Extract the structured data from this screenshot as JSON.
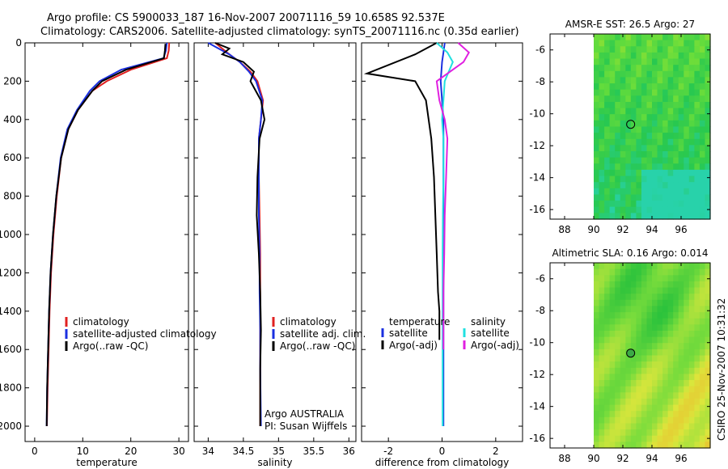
{
  "header": {
    "line1": "Argo profile: CS 5900033_187 16-Nov-2007 20071116_59 10.658S 92.537E",
    "line2": "Climatology: CARS2006. Satellite-adjusted climatology: synTS_20071116.nc (0.35d earlier)"
  },
  "side_stamp": "CSIRO 25-Nov-2007 10:31:32",
  "colors": {
    "climatology": "#e02020",
    "satellite": "#1a2fe0",
    "argo": "#000000",
    "sal_satellite": "#20e0e0",
    "sal_argo": "#e020e0"
  },
  "chart_data": [
    {
      "type": "line",
      "id": "temperature",
      "title": "",
      "xlabel": "temperature",
      "ylabel": "",
      "xlim": [
        -2,
        32
      ],
      "ylim": [
        2080,
        0
      ],
      "xticks": [
        0,
        10,
        20,
        30
      ],
      "xtick_labels": [
        "0",
        "10",
        "20",
        "30"
      ],
      "yticks": [
        0,
        200,
        400,
        600,
        800,
        1000,
        1200,
        1400,
        1600,
        1800,
        2000
      ],
      "ytick_labels": [
        "0",
        "200",
        "400",
        "600",
        "800",
        "1000",
        "1200",
        "1400",
        "1600",
        "1800",
        "2000"
      ],
      "series": [
        {
          "name": "climatology",
          "color": "#e02020",
          "x": [
            28,
            27.9,
            27.5,
            20,
            15,
            12,
            9,
            7,
            5.5,
            4.6,
            3.9,
            3.4,
            3.1,
            2.9,
            2.7,
            2.55
          ],
          "y": [
            0,
            40,
            80,
            140,
            200,
            250,
            350,
            450,
            600,
            800,
            1000,
            1200,
            1400,
            1600,
            1800,
            2000
          ]
        },
        {
          "name": "satellite-adjusted climatology",
          "color": "#1a2fe0",
          "x": [
            27.5,
            27.3,
            26.8,
            18,
            13.5,
            11.5,
            8.8,
            6.8,
            5.4,
            4.5,
            3.8,
            3.3,
            3.0,
            2.8,
            2.6,
            2.5
          ],
          "y": [
            0,
            40,
            80,
            140,
            200,
            250,
            350,
            450,
            600,
            800,
            1000,
            1200,
            1400,
            1600,
            1800,
            2000
          ]
        },
        {
          "name": "Argo(..raw -QC)",
          "color": "#000000",
          "x": [
            27.2,
            27.1,
            26.9,
            19,
            14,
            12,
            9,
            7,
            5.5,
            4.5,
            3.8,
            3.3,
            3.0,
            2.8,
            2.6,
            2.5
          ],
          "y": [
            5,
            40,
            80,
            140,
            200,
            250,
            350,
            450,
            600,
            800,
            1000,
            1200,
            1400,
            1600,
            1800,
            2000
          ]
        }
      ],
      "legend": {
        "position": "lower-right",
        "entries": [
          "climatology",
          "satellite-adjusted climatology",
          "Argo(..raw -QC)"
        ]
      }
    },
    {
      "type": "line",
      "id": "salinity",
      "title": "",
      "xlabel": "salinity",
      "ylabel": "",
      "xlim": [
        33.8,
        36.1
      ],
      "ylim": [
        2080,
        0
      ],
      "xticks": [
        34,
        34.5,
        35,
        35.5,
        36
      ],
      "xtick_labels": [
        "34",
        "34.5",
        "35",
        "35.5",
        "36"
      ],
      "series": [
        {
          "name": "climatology",
          "color": "#e02020",
          "x": [
            34.1,
            34.2,
            34.3,
            34.45,
            34.6,
            34.7,
            34.78,
            34.75,
            34.72,
            34.72,
            34.73,
            34.74,
            34.74,
            34.74,
            34.74,
            34.74
          ],
          "y": [
            0,
            30,
            60,
            100,
            150,
            200,
            300,
            400,
            500,
            700,
            900,
            1100,
            1300,
            1500,
            1700,
            2000
          ]
        },
        {
          "name": "satellite adj. clim.",
          "color": "#1a2fe0",
          "x": [
            34.0,
            34.15,
            34.3,
            34.45,
            34.58,
            34.68,
            34.77,
            34.75,
            34.72,
            34.72,
            34.72,
            34.73,
            34.73,
            34.74,
            34.74,
            34.75
          ],
          "y": [
            0,
            30,
            60,
            100,
            150,
            200,
            300,
            400,
            500,
            700,
            900,
            1100,
            1300,
            1500,
            1700,
            2000
          ]
        },
        {
          "name": "Argo(..raw -QC)",
          "color": "#000000",
          "x": [
            34.1,
            34.3,
            34.2,
            34.5,
            34.65,
            34.6,
            34.75,
            34.8,
            34.73,
            34.7,
            34.69,
            34.72,
            34.74,
            34.75,
            34.74,
            34.74
          ],
          "y": [
            0,
            30,
            60,
            100,
            150,
            200,
            300,
            400,
            500,
            700,
            900,
            1100,
            1300,
            1500,
            1700,
            2000
          ]
        }
      ],
      "legend": {
        "position": "lower-right",
        "entries": [
          "climatology",
          "satellite adj. clim.",
          "Argo(..raw -QC)"
        ]
      },
      "annotations": [
        "Argo AUSTRALIA",
        "PI: Susan Wijffels"
      ]
    },
    {
      "type": "line",
      "id": "difference",
      "title": "",
      "xlabel": "difference from climatology",
      "ylabel": "",
      "xlim": [
        -3,
        3
      ],
      "ylim": [
        2080,
        0
      ],
      "xticks": [
        -2,
        0,
        2
      ],
      "xtick_labels": [
        "-2",
        "0",
        "2"
      ],
      "series": [
        {
          "name": "temperature satellite",
          "color": "#1a2fe0",
          "x": [
            0.1,
            0.05,
            0.0,
            -0.05,
            0.0,
            0.05,
            0.05,
            0.05,
            0.05,
            0.05,
            0.05,
            0.05,
            0.05,
            0.05,
            0.05
          ],
          "y": [
            0,
            50,
            100,
            200,
            300,
            400,
            500,
            700,
            900,
            1100,
            1300,
            1500,
            1700,
            1900,
            2000
          ]
        },
        {
          "name": "temperature Argo(-adj)",
          "color": "#000000",
          "x": [
            -0.2,
            -1.0,
            -2.8,
            -1.0,
            -0.6,
            -0.5,
            -0.4,
            -0.3,
            -0.25,
            -0.2,
            -0.15,
            -0.1,
            -0.1,
            -0.1,
            -0.1
          ],
          "y": [
            0,
            60,
            160,
            200,
            300,
            400,
            500,
            700,
            900,
            1100,
            1300,
            1400,
            1500,
            1550,
            1550
          ]
        },
        {
          "name": "salinity satellite",
          "color": "#20e0e0",
          "x": [
            -0.2,
            0.2,
            0.4,
            0.1,
            0.05,
            0.0,
            0.05,
            0.05,
            0.03,
            0.02,
            0.02,
            0.02,
            0.02,
            0.02,
            0.02
          ],
          "y": [
            0,
            50,
            100,
            200,
            300,
            400,
            500,
            700,
            900,
            1100,
            1300,
            1500,
            1700,
            1900,
            2000
          ]
        },
        {
          "name": "salinity Argo(-adj)",
          "color": "#e020e0",
          "x": [
            0.6,
            1.0,
            0.8,
            -0.2,
            -0.1,
            0.1,
            0.2,
            0.15,
            0.1,
            0.08,
            0.05,
            0.05,
            0.05,
            0.05,
            0.05
          ],
          "y": [
            0,
            50,
            100,
            200,
            300,
            400,
            500,
            700,
            900,
            1100,
            1300,
            1500,
            1600,
            1600,
            1600
          ]
        }
      ],
      "legend": {
        "position": "lower",
        "entries": [
          "temperature",
          "satellite",
          "Argo(-adj)",
          "salinity",
          "satellite",
          "Argo(-adj)"
        ]
      }
    },
    {
      "type": "heatmap",
      "id": "sst_map",
      "title": "AMSR-E SST: 26.5 Argo: 27",
      "xlim": [
        87,
        98
      ],
      "ylim": [
        -16.6,
        -5
      ],
      "xticks": [
        88,
        90,
        92,
        94,
        96
      ],
      "xtick_labels": [
        "88",
        "90",
        "92",
        "94",
        "96"
      ],
      "yticks": [
        -6,
        -8,
        -10,
        -12,
        -14,
        -16
      ],
      "ytick_labels": [
        "-6",
        "-8",
        "-10",
        "-12",
        "-14",
        "-16"
      ],
      "data_xmin": 90,
      "data_xmax": 98,
      "marker": {
        "lon": 92.537,
        "lat": -10.658
      }
    },
    {
      "type": "heatmap",
      "id": "sla_map",
      "title": "Altimetric SLA: 0.16 Argo: 0.014",
      "xlim": [
        87,
        98
      ],
      "ylim": [
        -16.6,
        -5
      ],
      "xticks": [
        88,
        90,
        92,
        94,
        96
      ],
      "xtick_labels": [
        "88",
        "90",
        "92",
        "94",
        "96"
      ],
      "yticks": [
        -6,
        -8,
        -10,
        -12,
        -14,
        -16
      ],
      "ytick_labels": [
        "-6",
        "-8",
        "-10",
        "-12",
        "-14",
        "-16"
      ],
      "data_xmin": 90,
      "data_xmax": 98,
      "marker": {
        "lon": 92.537,
        "lat": -10.658
      }
    }
  ]
}
